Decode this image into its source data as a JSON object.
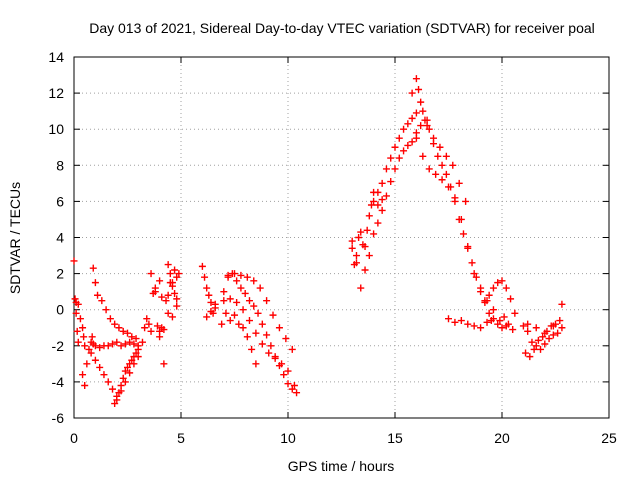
{
  "chart_data": {
    "type": "scatter",
    "title": "Day 013 of 2021, Sidereal Day-to-day VTEC variation (SDTVAR) for receiver poal",
    "xlabel": "GPS time / hours",
    "ylabel": "SDTVAR / TECUs",
    "xlim": [
      0,
      25
    ],
    "ylim": [
      -6,
      14
    ],
    "xticks": [
      0,
      5,
      10,
      15,
      20,
      25
    ],
    "yticks": [
      -6,
      -4,
      -2,
      0,
      2,
      4,
      6,
      8,
      10,
      12,
      14
    ],
    "grid": true,
    "marker": "+",
    "colors": {
      "series": "#ff0000",
      "grid": "#a0a0a0",
      "axes": "#000000"
    },
    "series": [
      {
        "name": "SDTVAR",
        "x": [
          0.0,
          0.05,
          0.1,
          0.15,
          0.2,
          0.1,
          0.2,
          0.3,
          0.4,
          0.45,
          0.5,
          0.4,
          0.5,
          0.6,
          0.7,
          0.8,
          0.85,
          0.9,
          1.0,
          1.2,
          1.4,
          1.6,
          1.8,
          2.0,
          2.2,
          2.4,
          2.6,
          2.8,
          3.0,
          0.9,
          1.0,
          1.1,
          1.3,
          1.5,
          1.7,
          1.9,
          2.1,
          2.3,
          2.5,
          2.7,
          2.9,
          0.8,
          1.0,
          1.2,
          1.4,
          1.6,
          1.8,
          2.0,
          2.2,
          2.4,
          2.6,
          2.8,
          3.0,
          3.2,
          1.9,
          2.0,
          2.1,
          2.2,
          2.3,
          2.4,
          2.5,
          2.6,
          2.7,
          2.8,
          2.9,
          3.0,
          3.3,
          3.4,
          3.5,
          3.6,
          3.7,
          3.8,
          3.9,
          4.0,
          4.1,
          4.2,
          3.6,
          3.8,
          4.0,
          4.2,
          4.4,
          4.5,
          4.6,
          4.7,
          4.8,
          4.9,
          4.3,
          4.4,
          4.5,
          4.6,
          4.7,
          4.8,
          4.4,
          4.6,
          4.8,
          4.0,
          4.1,
          6.0,
          6.1,
          6.2,
          6.3,
          6.4,
          6.5,
          6.6,
          6.2,
          6.4,
          6.6,
          7.0,
          7.2,
          7.4,
          7.6,
          7.8,
          8.0,
          8.2,
          8.4,
          8.6,
          8.8,
          9.0,
          9.2,
          9.4,
          9.6,
          9.8,
          10.0,
          10.2,
          10.4,
          7.0,
          7.3,
          7.6,
          7.9,
          8.2,
          8.5,
          8.8,
          9.1,
          9.4,
          9.7,
          10.0,
          10.3,
          7.2,
          7.5,
          7.8,
          8.1,
          8.4,
          8.7,
          9.0,
          9.3,
          9.6,
          9.9,
          10.2,
          6.9,
          7.1,
          7.3,
          7.5,
          7.7,
          7.9,
          8.1,
          8.3,
          8.5,
          13.0,
          13.1,
          13.2,
          13.3,
          13.4,
          13.5,
          13.6,
          13.7,
          13.8,
          13.9,
          14.0,
          14.2,
          14.4,
          14.6,
          14.8,
          15.0,
          15.2,
          15.4,
          15.6,
          15.8,
          16.0,
          16.2,
          14.0,
          14.2,
          14.4,
          14.6,
          14.8,
          15.0,
          15.2,
          15.4,
          15.6,
          15.8,
          16.0,
          13.0,
          13.2,
          13.4,
          13.6,
          13.8,
          14.0,
          14.2,
          14.4,
          15.8,
          16.0,
          16.1,
          16.2,
          16.3,
          16.4,
          16.5,
          16.6,
          16.8,
          17.0,
          17.2,
          17.4,
          17.6,
          17.8,
          18.0,
          18.2,
          18.4,
          18.6,
          18.8,
          19.0,
          19.2,
          19.4,
          16.0,
          16.3,
          16.6,
          16.9,
          17.2,
          17.5,
          17.8,
          18.1,
          18.4,
          18.7,
          19.0,
          19.3,
          19.6,
          16.5,
          16.8,
          17.1,
          17.4,
          17.7,
          18.0,
          18.3,
          19.2,
          19.4,
          19.6,
          19.8,
          20.0,
          20.2,
          20.4,
          19.5,
          19.8,
          20.1,
          17.5,
          17.8,
          18.1,
          18.4,
          18.7,
          19.0,
          19.3,
          19.6,
          19.9,
          20.2,
          20.5,
          20.0,
          20.3,
          20.6,
          21.0,
          21.2,
          21.4,
          21.6,
          21.8,
          22.0,
          22.2,
          22.4,
          22.6,
          22.8,
          21.1,
          21.3,
          21.5,
          21.7,
          21.9,
          22.1,
          22.3,
          22.5,
          22.7,
          21.2,
          21.6,
          22.0,
          22.4,
          22.8
        ],
        "y": [
          2.7,
          0.6,
          -0.2,
          -1.2,
          -1.8,
          0.4,
          0.3,
          -0.5,
          -1.0,
          -1.5,
          -2.0,
          -3.6,
          -4.2,
          -3.0,
          -2.2,
          -1.8,
          -1.5,
          -1.9,
          -2.0,
          -2.1,
          -2.0,
          -2.0,
          -1.9,
          -1.8,
          -2.0,
          -1.9,
          -1.8,
          -1.9,
          -2.0,
          2.3,
          1.5,
          0.8,
          0.5,
          0.0,
          -0.5,
          -0.8,
          -1.0,
          -1.2,
          -1.3,
          -1.5,
          -1.6,
          -2.4,
          -2.8,
          -3.2,
          -3.6,
          -4.0,
          -4.4,
          -4.8,
          -4.5,
          -4.0,
          -3.5,
          -3.0,
          -2.6,
          -1.8,
          -5.2,
          -5.0,
          -4.6,
          -4.2,
          -3.8,
          -3.4,
          -3.2,
          -3.0,
          -2.8,
          -2.6,
          -2.4,
          -2.2,
          -1.0,
          -0.5,
          -0.8,
          -1.2,
          0.9,
          1.2,
          -0.9,
          -1.2,
          -1.0,
          -1.1,
          2.0,
          1.0,
          -1.5,
          -3.0,
          2.5,
          2.0,
          1.5,
          2.2,
          1.8,
          2.0,
          0.5,
          0.8,
          1.5,
          1.3,
          0.9,
          0.6,
          -0.2,
          -0.4,
          0.2,
          1.6,
          0.7,
          2.4,
          1.8,
          1.2,
          0.8,
          0.4,
          -0.2,
          0.1,
          -0.4,
          -0.1,
          0.3,
          1.0,
          1.8,
          2.0,
          1.6,
          1.2,
          0.9,
          0.5,
          0.2,
          -0.2,
          -0.8,
          -1.4,
          -2.0,
          -2.6,
          -3.1,
          -3.6,
          -4.1,
          -4.4,
          -4.6,
          0.5,
          0.6,
          0.4,
          0.0,
          -0.6,
          -1.3,
          -1.9,
          -2.4,
          -2.7,
          -3.0,
          -3.4,
          -4.2,
          1.9,
          2.0,
          1.9,
          1.8,
          1.6,
          1.2,
          0.5,
          -0.3,
          -1.0,
          -1.6,
          -2.2,
          -0.8,
          -0.2,
          -0.6,
          -0.3,
          -0.8,
          -1.0,
          -1.5,
          -2.2,
          -3.0,
          3.8,
          2.5,
          3.0,
          4.0,
          4.3,
          3.6,
          3.5,
          4.4,
          5.2,
          5.8,
          6.0,
          6.5,
          7.0,
          7.8,
          8.4,
          9.0,
          9.5,
          10.0,
          10.3,
          10.6,
          10.9,
          10.2,
          4.2,
          4.8,
          5.5,
          6.3,
          7.1,
          7.8,
          8.4,
          8.8,
          9.1,
          9.3,
          9.5,
          3.4,
          2.6,
          1.2,
          2.2,
          3.0,
          6.5,
          5.8,
          6.1,
          12.0,
          12.8,
          12.2,
          11.5,
          11.0,
          10.5,
          10.2,
          10.0,
          9.2,
          8.5,
          8.0,
          7.5,
          6.8,
          6.0,
          5.0,
          4.2,
          3.4,
          2.6,
          1.8,
          1.0,
          0.4,
          -0.2,
          9.8,
          8.5,
          7.8,
          7.5,
          7.2,
          6.8,
          6.2,
          5.0,
          3.5,
          2.0,
          1.2,
          0.5,
          0.0,
          10.5,
          9.5,
          9.0,
          8.5,
          8.0,
          7.0,
          6.0,
          0.5,
          0.8,
          1.2,
          1.5,
          1.6,
          1.2,
          0.6,
          -0.6,
          -0.8,
          -0.4,
          -0.5,
          -0.7,
          -0.6,
          -0.8,
          -0.9,
          -1.0,
          -0.7,
          -0.5,
          -0.6,
          -0.9,
          -1.1,
          -1.0,
          -0.8,
          -0.2,
          -0.9,
          -1.2,
          -1.8,
          -2.0,
          -2.2,
          -1.9,
          -1.6,
          -1.4,
          -1.3,
          -1.0,
          -2.4,
          -2.6,
          -2.2,
          -1.7,
          -1.5,
          -1.2,
          -0.9,
          -0.8,
          -0.6,
          -0.8,
          -1.0,
          -1.3,
          -0.9,
          0.3
        ]
      }
    ]
  }
}
